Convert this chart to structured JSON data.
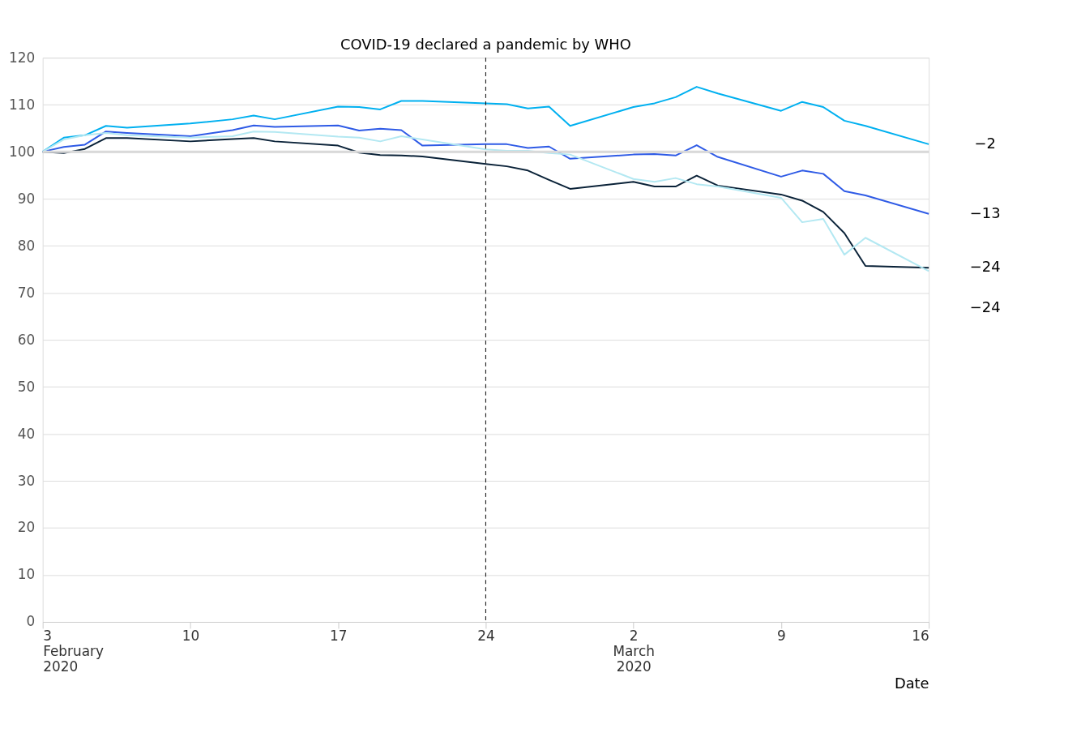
{
  "chart_data": {
    "type": "line",
    "xlabel": "Date",
    "x": [
      "2020-02-03",
      "2020-02-04",
      "2020-02-05",
      "2020-02-06",
      "2020-02-07",
      "2020-02-10",
      "2020-02-12",
      "2020-02-13",
      "2020-02-14",
      "2020-02-17",
      "2020-02-18",
      "2020-02-19",
      "2020-02-20",
      "2020-02-21",
      "2020-02-24",
      "2020-02-25",
      "2020-02-26",
      "2020-02-27",
      "2020-02-28",
      "2020-03-02",
      "2020-03-03",
      "2020-03-04",
      "2020-03-05",
      "2020-03-06",
      "2020-03-09",
      "2020-03-10",
      "2020-03-11",
      "2020-03-12",
      "2020-03-13",
      "2020-03-16"
    ],
    "series": [
      {
        "color": "#00b0f0",
        "values": [
          100,
          103,
          103.5,
          105.5,
          105.1,
          106,
          106.9,
          107.7,
          106.9,
          109.6,
          109.5,
          109,
          110.8,
          110.8,
          110.3,
          110.1,
          109.2,
          109.6,
          105.5,
          109.5,
          110.3,
          111.6,
          113.8,
          112.4,
          108.7,
          110.6,
          109.5,
          106.6,
          105.5,
          101.6
        ]
      },
      {
        "color": "#2f5be6",
        "values": [
          100,
          101,
          101.5,
          104.3,
          104,
          103.3,
          104.6,
          105.6,
          105.3,
          105.6,
          104.5,
          104.9,
          104.6,
          101.3,
          101.6,
          101.6,
          100.8,
          101.1,
          98.5,
          99.4,
          99.5,
          99.2,
          101.4,
          98.9,
          94.7,
          96,
          95.3,
          91.6,
          90.7,
          86.8
        ]
      },
      {
        "color": "#0a2238",
        "values": [
          100,
          99.7,
          100.6,
          102.9,
          102.9,
          102.2,
          102.7,
          102.9,
          102.2,
          101.3,
          99.8,
          99.3,
          99.2,
          99,
          97.4,
          96.9,
          96,
          94,
          92.1,
          93.6,
          92.6,
          92.6,
          94.9,
          92.8,
          90.9,
          89.6,
          87.2,
          82.7,
          75.7,
          75.3
        ]
      },
      {
        "color": "#b3e8f2",
        "values": [
          100,
          102.6,
          103.5,
          104,
          103.5,
          103,
          103.3,
          104.3,
          104.2,
          103.2,
          103,
          102.2,
          103.3,
          102.6,
          100.5,
          100.2,
          100.2,
          99.7,
          99.4,
          94.2,
          93.6,
          94.4,
          93.1,
          92.6,
          90.2,
          85,
          85.7,
          78.1,
          81.7,
          74.6
        ]
      }
    ],
    "xlim": [
      "2020-02-03",
      "2020-03-16"
    ],
    "xticks": [
      {
        "value": "2020-02-03",
        "label": "3 February 2020"
      },
      {
        "value": "2020-02-10",
        "label": "10"
      },
      {
        "value": "2020-02-17",
        "label": "17"
      },
      {
        "value": "2020-02-24",
        "label": "24"
      },
      {
        "value": "2020-03-02",
        "label": "2 March 2020"
      },
      {
        "value": "2020-03-09",
        "label": "9"
      },
      {
        "value": "2020-03-16",
        "label": "16"
      }
    ],
    "ylim": [
      0,
      120
    ],
    "yticks": [
      0,
      10,
      20,
      30,
      40,
      50,
      60,
      70,
      80,
      90,
      100,
      110,
      120
    ],
    "grid": "y",
    "legend": false,
    "line_style": "solid",
    "ref_lines": [
      {
        "axis": "y",
        "value": 100,
        "color": "#d9d9d9",
        "line_style": "solid"
      },
      {
        "axis": "x",
        "value": "2020-02-24",
        "label": "COVID-19 declared a pandemic by WHO",
        "color": "#000000",
        "line_style": "dashed"
      }
    ],
    "annotations": [
      "−2",
      "−13",
      "−24",
      "−24"
    ]
  }
}
